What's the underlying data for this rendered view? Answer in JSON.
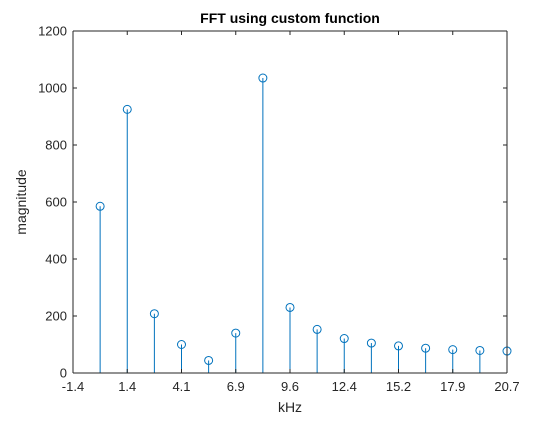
{
  "chart_data": {
    "type": "stem",
    "title": "FFT using custom function",
    "xlabel": "kHz",
    "ylabel": "magnitude",
    "xlim": [
      -1.378,
      20.67
    ],
    "ylim": [
      0,
      1200
    ],
    "xticks": [
      -1.378,
      1.378,
      4.134,
      6.89,
      9.646,
      12.402,
      15.158,
      17.914,
      20.67
    ],
    "xtick_labels": [
      "-1.4",
      "1.4",
      "4.1",
      "6.9",
      "9.6",
      "12.4",
      "15.2",
      "17.9",
      "20.7"
    ],
    "yticks": [
      0,
      200,
      400,
      600,
      800,
      1000,
      1200
    ],
    "ytick_labels": [
      "0",
      "200",
      "400",
      "600",
      "800",
      "1000",
      "1200"
    ],
    "grid": false,
    "marker": "open circle",
    "color": "#0072BD",
    "x": [
      0,
      1.378,
      2.756,
      4.134,
      5.512,
      6.89,
      8.268,
      9.646,
      11.024,
      12.402,
      13.78,
      15.158,
      16.536,
      17.914,
      19.292,
      20.67
    ],
    "values": [
      585,
      925,
      208,
      100,
      44,
      140,
      1035,
      230,
      153,
      121,
      105,
      95,
      87,
      82,
      79,
      77
    ]
  }
}
